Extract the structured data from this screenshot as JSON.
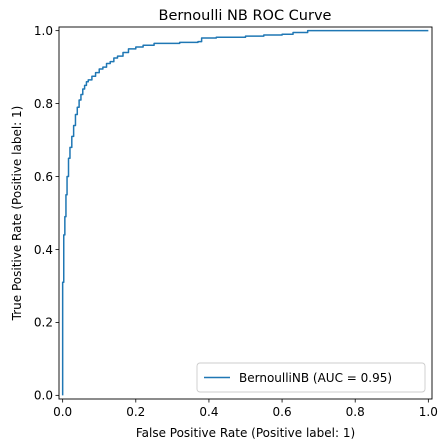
{
  "chart_data": {
    "type": "line",
    "title": "Bernoulli NB ROC Curve",
    "xlabel": "False Positive Rate (Positive label: 1)",
    "ylabel": "True Positive Rate (Positive label: 1)",
    "xlim": [
      -0.01,
      1.01
    ],
    "ylim": [
      -0.01,
      1.01
    ],
    "xticks": [
      0.0,
      0.2,
      0.4,
      0.6,
      0.8,
      1.0
    ],
    "xtick_labels": [
      "0.0",
      "0.2",
      "0.4",
      "0.6",
      "0.8",
      "1.0"
    ],
    "yticks": [
      0.0,
      0.2,
      0.4,
      0.6,
      0.8,
      1.0
    ],
    "ytick_labels": [
      "0.0",
      "0.2",
      "0.4",
      "0.6",
      "0.8",
      "1.0"
    ],
    "grid": false,
    "legend_position": "bottom-right",
    "series": [
      {
        "name": "BernoulliNB (AUC = 0.95)",
        "color": "#1f77b4",
        "x": [
          0.0,
          0.0,
          0.003,
          0.003,
          0.006,
          0.006,
          0.009,
          0.009,
          0.012,
          0.012,
          0.016,
          0.016,
          0.02,
          0.02,
          0.025,
          0.025,
          0.03,
          0.03,
          0.035,
          0.035,
          0.04,
          0.04,
          0.045,
          0.045,
          0.05,
          0.05,
          0.055,
          0.055,
          0.06,
          0.06,
          0.065,
          0.065,
          0.07,
          0.07,
          0.08,
          0.08,
          0.09,
          0.09,
          0.1,
          0.1,
          0.11,
          0.11,
          0.12,
          0.12,
          0.13,
          0.13,
          0.14,
          0.14,
          0.15,
          0.15,
          0.165,
          0.165,
          0.18,
          0.18,
          0.2,
          0.2,
          0.22,
          0.22,
          0.25,
          0.25,
          0.28,
          0.28,
          0.32,
          0.32,
          0.37,
          0.37,
          0.38,
          0.38,
          0.42,
          0.42,
          0.5,
          0.5,
          0.55,
          0.55,
          0.6,
          0.6,
          0.63,
          0.63,
          0.67,
          0.67,
          1.0
        ],
        "y": [
          0.0,
          0.31,
          0.31,
          0.44,
          0.44,
          0.49,
          0.49,
          0.55,
          0.55,
          0.6,
          0.6,
          0.65,
          0.65,
          0.68,
          0.68,
          0.71,
          0.71,
          0.74,
          0.74,
          0.77,
          0.77,
          0.79,
          0.79,
          0.81,
          0.81,
          0.825,
          0.825,
          0.84,
          0.84,
          0.85,
          0.85,
          0.86,
          0.86,
          0.865,
          0.865,
          0.875,
          0.875,
          0.885,
          0.885,
          0.895,
          0.895,
          0.9,
          0.9,
          0.91,
          0.91,
          0.915,
          0.915,
          0.925,
          0.925,
          0.93,
          0.93,
          0.94,
          0.94,
          0.95,
          0.95,
          0.955,
          0.955,
          0.96,
          0.96,
          0.965,
          0.965,
          0.965,
          0.965,
          0.968,
          0.968,
          0.97,
          0.97,
          0.98,
          0.98,
          0.982,
          0.982,
          0.985,
          0.985,
          0.988,
          0.988,
          0.99,
          0.99,
          0.995,
          0.995,
          1.0,
          1.0
        ]
      }
    ]
  }
}
